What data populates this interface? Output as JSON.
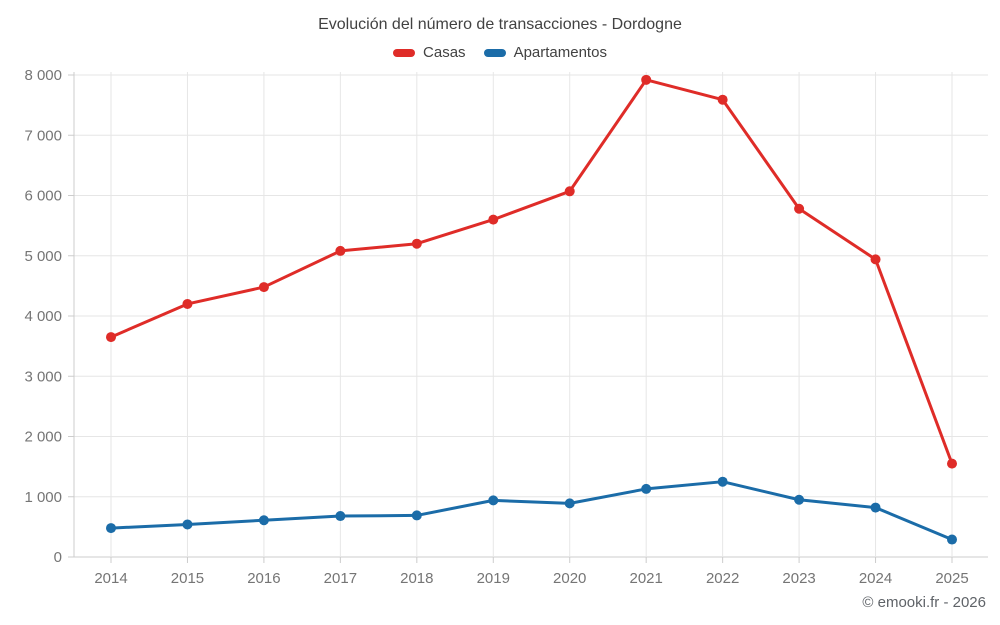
{
  "chart": {
    "footer": "© emooki.fr - 2026",
    "colors": {
      "casas": "#df2c28",
      "apartamentos": "#1b6ca8",
      "grid": "#e6e6e6",
      "axis": "#cccccc",
      "tick_label": "#757575",
      "title": "#424242"
    }
  },
  "chart_data": {
    "type": "line",
    "title": "Evolución del número de transacciones - Dordogne",
    "categories": [
      "2014",
      "2015",
      "2016",
      "2017",
      "2018",
      "2019",
      "2020",
      "2021",
      "2022",
      "2023",
      "2024",
      "2025"
    ],
    "series": [
      {
        "name": "Casas",
        "color": "#df2c28",
        "values": [
          3650,
          4200,
          4480,
          5080,
          5200,
          5600,
          6070,
          7920,
          7590,
          5780,
          4940,
          1550
        ]
      },
      {
        "name": "Apartamentos",
        "color": "#1b6ca8",
        "values": [
          480,
          540,
          610,
          680,
          690,
          940,
          890,
          1130,
          1250,
          950,
          820,
          290
        ]
      }
    ],
    "xlabel": "",
    "ylabel": "",
    "ylim": [
      0,
      8000
    ],
    "ytick_step": 1000,
    "ytick_labels": [
      "0",
      "1 000",
      "2 000",
      "3 000",
      "4 000",
      "5 000",
      "6 000",
      "7 000",
      "8 000"
    ],
    "grid": true,
    "legend_position": "top"
  }
}
